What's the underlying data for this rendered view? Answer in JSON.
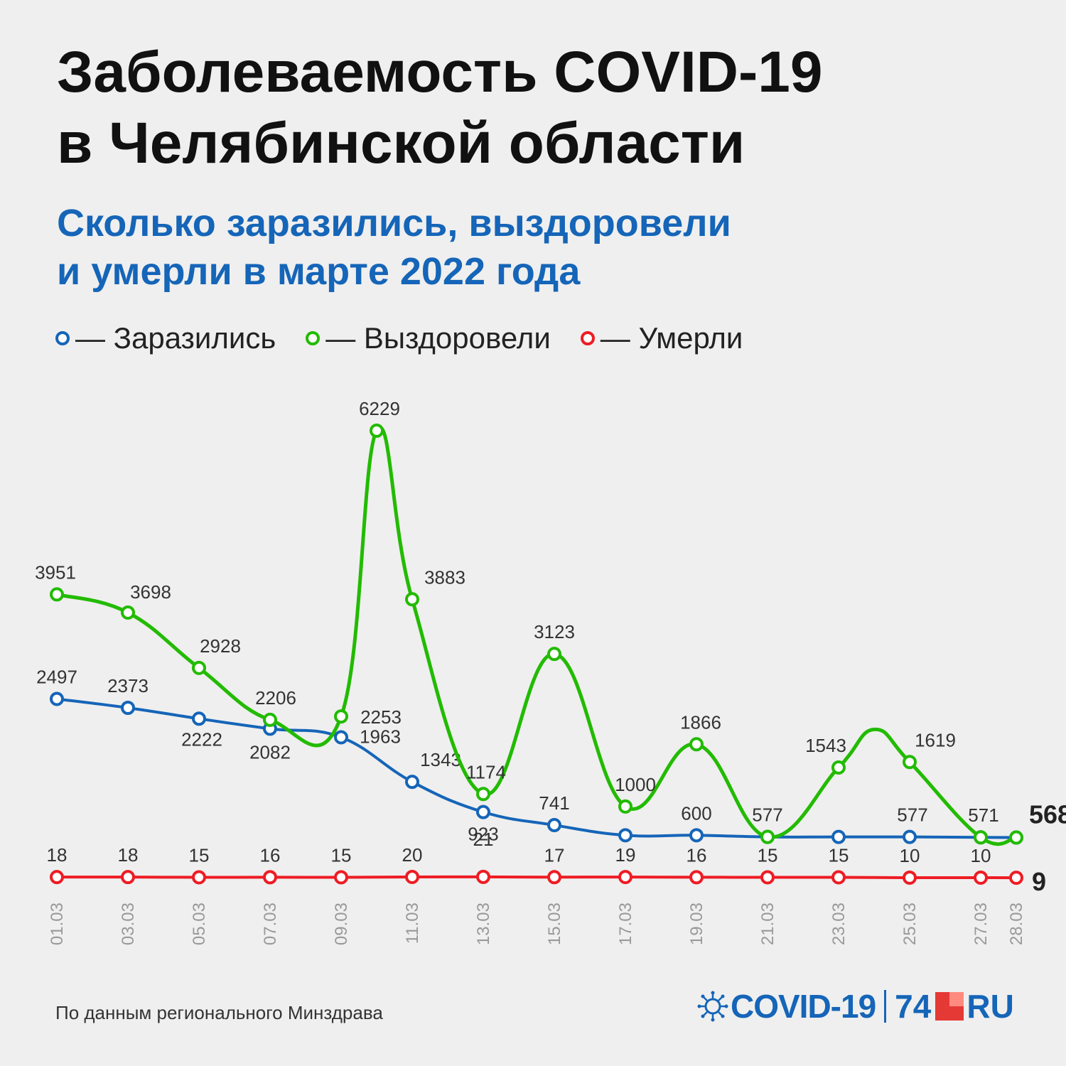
{
  "header": {
    "title_line1": "Заболеваемость COVID-19",
    "title_line2": "в Челябинской области",
    "subtitle_line1": "Сколько заразились, выздоровели",
    "subtitle_line2": "и умерли в марте 2022 года"
  },
  "legend": [
    {
      "label": "— Заразились",
      "color": "#1565b8"
    },
    {
      "label": "— Выздоровели",
      "color": "#22bb00"
    },
    {
      "label": "— Умерли",
      "color": "#ee1c24"
    }
  ],
  "footer": {
    "source": "По данным регионального Минздрава",
    "brand_covid": "COVID-19",
    "brand_74": "74",
    "brand_ru": "RU",
    "brand_icon": "virus-icon"
  },
  "chart_data": {
    "type": "line",
    "x": [
      "01.03",
      "03.03",
      "05.03",
      "07.03",
      "09.03",
      "11.03",
      "13.03",
      "15.03",
      "17.03",
      "19.03",
      "21.03",
      "23.03",
      "25.03",
      "27.03",
      "28.03"
    ],
    "series": [
      {
        "name": "Заразились",
        "color": "#1565b8",
        "values": [
          2497,
          2373,
          2222,
          2082,
          1963,
          1343,
          923,
          741,
          600,
          600,
          577,
          577,
          577,
          571,
          568
        ],
        "labels": [
          "2497",
          "2373",
          "2222",
          "2082",
          "1963",
          "1343",
          "923",
          "741",
          "",
          "600",
          "577",
          "",
          "577",
          "571",
          "568"
        ]
      },
      {
        "name": "Выздоровели",
        "color": "#22bb00",
        "x": [
          "01.03",
          "03.03",
          "05.03",
          "07.03",
          "09.03",
          "10.03",
          "11.03",
          "13.03",
          "15.03",
          "17.03",
          "19.03",
          "21.03",
          "23.03",
          "25.03",
          "27.03",
          "28.03"
        ],
        "values": [
          3951,
          3698,
          2928,
          2206,
          2253,
          6229,
          3883,
          1174,
          3123,
          1000,
          1866,
          577,
          1543,
          1619,
          571,
          568
        ],
        "labels": [
          "3951",
          "3698",
          "2928",
          "2206",
          "2253",
          "6229",
          "3883",
          "1174",
          "3123",
          "1000",
          "1866",
          "",
          "1543",
          "1619",
          "",
          ""
        ]
      },
      {
        "name": "Умерли",
        "color": "#ee1c24",
        "values": [
          18,
          18,
          15,
          16,
          15,
          20,
          21,
          17,
          19,
          16,
          15,
          15,
          10,
          10,
          9
        ],
        "labels": [
          "18",
          "18",
          "15",
          "16",
          "15",
          "20",
          "21",
          "17",
          "19",
          "16",
          "15",
          "15",
          "10",
          "10",
          "9"
        ]
      }
    ],
    "title": "Заболеваемость COVID-19 в Челябинской области",
    "subtitle": "Сколько заразились, выздоровели и умерли в марте 2022 года",
    "xlabel": "",
    "ylabel": "",
    "ylim": [
      0,
      6229
    ],
    "grid": false,
    "legend_position": "top-left",
    "highlighted_last": [
      "568",
      "9"
    ]
  }
}
